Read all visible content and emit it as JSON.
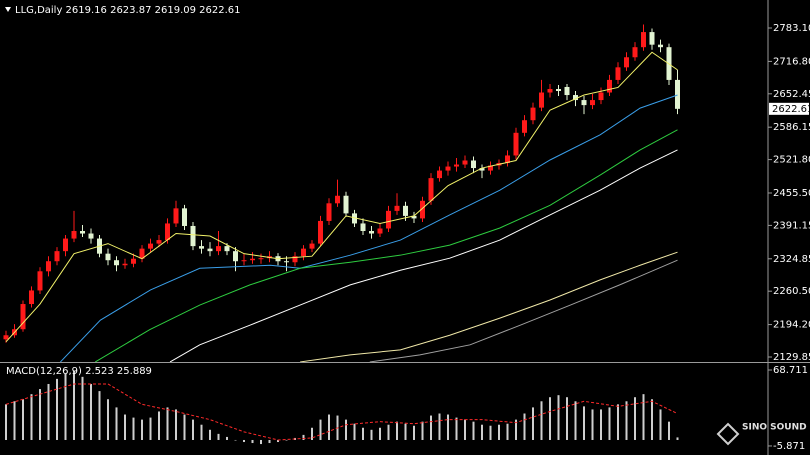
{
  "chart_data": {
    "type": "candlestick",
    "title": "LLG,Daily 2619.16 2623.87 2619.09 2622.61",
    "up_color": "#ff1a1a",
    "down_color": "#e2f4d2",
    "last_price": 2622.61,
    "ylim": [
      2119.9,
      2838.7
    ],
    "yticks": [
      {
        "value": 2783.1,
        "label": "2783.10"
      },
      {
        "value": 2716.8,
        "label": "2716.80"
      },
      2652.45,
      2586.15,
      {
        "value": 2521.8,
        "label": "2521.80"
      },
      {
        "value": 2455.5,
        "label": "2455.50"
      },
      2391.15,
      2324.85,
      {
        "value": 2260.5,
        "label": "2260.50"
      },
      {
        "value": 2194.2,
        "label": "2194.20"
      },
      2129.85
    ],
    "candles": [
      [
        2165,
        2182,
        2158,
        2173
      ],
      [
        2173,
        2195,
        2168,
        2185
      ],
      [
        2185,
        2242,
        2180,
        2235
      ],
      [
        2235,
        2270,
        2228,
        2262
      ],
      [
        2262,
        2308,
        2255,
        2300
      ],
      [
        2300,
        2330,
        2290,
        2320
      ],
      [
        2320,
        2348,
        2312,
        2340
      ],
      [
        2340,
        2372,
        2330,
        2365
      ],
      [
        2365,
        2420,
        2358,
        2380
      ],
      [
        2380,
        2392,
        2368,
        2375
      ],
      [
        2375,
        2385,
        2355,
        2365
      ],
      [
        2365,
        2372,
        2328,
        2335
      ],
      [
        2335,
        2345,
        2312,
        2322
      ],
      [
        2322,
        2330,
        2300,
        2312
      ],
      [
        2312,
        2325,
        2305,
        2315
      ],
      [
        2315,
        2335,
        2308,
        2325
      ],
      [
        2325,
        2352,
        2318,
        2345
      ],
      [
        2345,
        2365,
        2338,
        2355
      ],
      [
        2355,
        2372,
        2348,
        2362
      ],
      [
        2362,
        2405,
        2355,
        2395
      ],
      [
        2395,
        2440,
        2388,
        2425
      ],
      [
        2425,
        2432,
        2382,
        2390
      ],
      [
        2390,
        2398,
        2342,
        2350
      ],
      [
        2350,
        2362,
        2335,
        2345
      ],
      [
        2345,
        2358,
        2330,
        2340
      ],
      [
        2340,
        2380,
        2332,
        2350
      ],
      [
        2350,
        2356,
        2332,
        2340
      ],
      [
        2340,
        2348,
        2300,
        2320
      ],
      [
        2320,
        2335,
        2312,
        2322
      ],
      [
        2322,
        2338,
        2315,
        2325
      ],
      [
        2325,
        2335,
        2315,
        2326
      ],
      [
        2326,
        2340,
        2318,
        2330
      ],
      [
        2330,
        2336,
        2312,
        2320
      ],
      [
        2320,
        2330,
        2300,
        2318
      ],
      [
        2318,
        2338,
        2310,
        2330
      ],
      [
        2330,
        2352,
        2322,
        2345
      ],
      [
        2345,
        2362,
        2338,
        2355
      ],
      [
        2355,
        2410,
        2350,
        2400
      ],
      [
        2400,
        2445,
        2392,
        2435
      ],
      [
        2435,
        2482,
        2428,
        2450
      ],
      [
        2450,
        2458,
        2408,
        2415
      ],
      [
        2415,
        2422,
        2388,
        2395
      ],
      [
        2395,
        2405,
        2372,
        2380
      ],
      [
        2380,
        2390,
        2365,
        2375
      ],
      [
        2375,
        2395,
        2368,
        2385
      ],
      [
        2385,
        2430,
        2378,
        2420
      ],
      [
        2420,
        2455,
        2412,
        2430
      ],
      [
        2430,
        2438,
        2400,
        2410
      ],
      [
        2410,
        2418,
        2396,
        2405
      ],
      [
        2405,
        2448,
        2398,
        2440
      ],
      [
        2440,
        2495,
        2432,
        2485
      ],
      [
        2485,
        2508,
        2478,
        2500
      ],
      [
        2500,
        2518,
        2490,
        2508
      ],
      [
        2508,
        2525,
        2498,
        2512
      ],
      [
        2512,
        2530,
        2505,
        2520
      ],
      [
        2520,
        2528,
        2495,
        2505
      ],
      [
        2505,
        2512,
        2485,
        2500
      ],
      [
        2500,
        2518,
        2492,
        2510
      ],
      [
        2510,
        2522,
        2502,
        2515
      ],
      [
        2515,
        2540,
        2508,
        2530
      ],
      [
        2530,
        2585,
        2522,
        2575
      ],
      [
        2575,
        2610,
        2568,
        2600
      ],
      [
        2600,
        2635,
        2592,
        2625
      ],
      [
        2625,
        2680,
        2618,
        2655
      ],
      [
        2655,
        2672,
        2645,
        2662
      ],
      [
        2662,
        2670,
        2648,
        2658
      ],
      [
        2666,
        2672,
        2640,
        2650
      ],
      [
        2650,
        2658,
        2628,
        2640
      ],
      [
        2640,
        2648,
        2612,
        2630
      ],
      [
        2630,
        2652,
        2622,
        2640
      ],
      [
        2640,
        2665,
        2632,
        2655
      ],
      [
        2655,
        2690,
        2648,
        2680
      ],
      [
        2680,
        2715,
        2672,
        2705
      ],
      [
        2705,
        2735,
        2698,
        2725
      ],
      [
        2725,
        2755,
        2718,
        2745
      ],
      [
        2745,
        2790,
        2738,
        2775
      ],
      [
        2775,
        2782,
        2740,
        2750
      ],
      [
        2750,
        2760,
        2735,
        2745
      ],
      [
        2745,
        2752,
        2670,
        2680
      ],
      [
        2680,
        2700,
        2612,
        2622.61
      ]
    ],
    "moving_averages": [
      {
        "color": "#f2f26a",
        "x": [
          0,
          4,
          8,
          12,
          16,
          20,
          24,
          28,
          32,
          36,
          40,
          44,
          48,
          52,
          56,
          60,
          64,
          68,
          72,
          76,
          79
        ],
        "values": [
          2160,
          2235,
          2335,
          2355,
          2325,
          2375,
          2370,
          2335,
          2325,
          2330,
          2410,
          2395,
          2410,
          2470,
          2505,
          2520,
          2620,
          2650,
          2665,
          2735,
          2700
        ]
      },
      {
        "color": "#3a9ee8",
        "x": [
          6.4,
          11.1,
          17,
          22.8,
          31.1,
          34.6,
          40.5,
          46.4,
          52.2,
          58.1,
          64,
          69.9,
          74.6,
          79
        ],
        "values": [
          2120,
          2203,
          2263,
          2306,
          2312,
          2306,
          2332,
          2362,
          2412,
          2461,
          2521,
          2571,
          2624,
          2650
        ]
      },
      {
        "color": "#2ecc40",
        "x": [
          10.5,
          16.9,
          22.8,
          28.7,
          34.6,
          40.5,
          46.4,
          52.2,
          58.1,
          64,
          69.9,
          74.6,
          79
        ],
        "values": [
          2120,
          2184,
          2233,
          2273,
          2306,
          2318,
          2332,
          2352,
          2386,
          2431,
          2491,
          2541,
          2581
        ]
      },
      {
        "color": "#ffffff",
        "x": [
          19.3,
          22.8,
          28.7,
          34.6,
          40.5,
          46.4,
          52.2,
          58.1,
          64,
          69.9,
          74.6,
          79
        ],
        "values": [
          2120,
          2154,
          2193,
          2233,
          2273,
          2302,
          2326,
          2362,
          2412,
          2461,
          2505,
          2541
        ]
      },
      {
        "color": "#f0e8a8",
        "x": [
          34.6,
          40.5,
          46.4,
          52.2,
          58.1,
          64,
          69.9,
          74.6,
          79
        ],
        "values": [
          2120,
          2134,
          2144,
          2173,
          2207,
          2243,
          2283,
          2312,
          2338
        ]
      },
      {
        "color": "#a0a0a0",
        "x": [
          42.8,
          48.7,
          54.6,
          60.5,
          66.4,
          72.2,
          79
        ],
        "values": [
          2120,
          2134,
          2154,
          2193,
          2233,
          2273,
          2322
        ]
      }
    ],
    "macd": {
      "type": "macd",
      "title": "MACD(12,26,9) 2.523 25.889",
      "histogram_color": "#cfcfcf",
      "histogram": [
        35,
        38,
        40,
        45,
        50,
        55,
        60,
        65,
        68,
        62,
        55,
        48,
        40,
        32,
        25,
        22,
        20,
        22,
        28,
        32,
        30,
        25,
        20,
        15,
        10,
        6,
        3,
        0,
        -2,
        -3,
        -4,
        -3,
        -2,
        0,
        2,
        5,
        12,
        20,
        25,
        24,
        20,
        16,
        12,
        10,
        12,
        15,
        18,
        16,
        14,
        18,
        24,
        26,
        25,
        22,
        20,
        18,
        15,
        14,
        15,
        16,
        20,
        26,
        32,
        38,
        42,
        44,
        42,
        38,
        33,
        30,
        30,
        32,
        35,
        38,
        42,
        45,
        40,
        30,
        18,
        2.523
      ],
      "signal": {
        "color": "#ff2a2a",
        "x": [
          0,
          8,
          12,
          16,
          20,
          24,
          28,
          32,
          36,
          40,
          44,
          48,
          52,
          56,
          60,
          64,
          68,
          72,
          76,
          79
        ],
        "values": [
          35,
          55,
          55,
          35,
          28,
          20,
          8,
          0,
          2,
          15,
          18,
          16,
          20,
          20,
          17,
          28,
          38,
          33,
          38,
          25.889
        ]
      },
      "ylim": [
        -11.8,
        75.6
      ],
      "yticks": [
        68.711,
        -5.871
      ]
    }
  },
  "watermark": "SINO SOUND"
}
